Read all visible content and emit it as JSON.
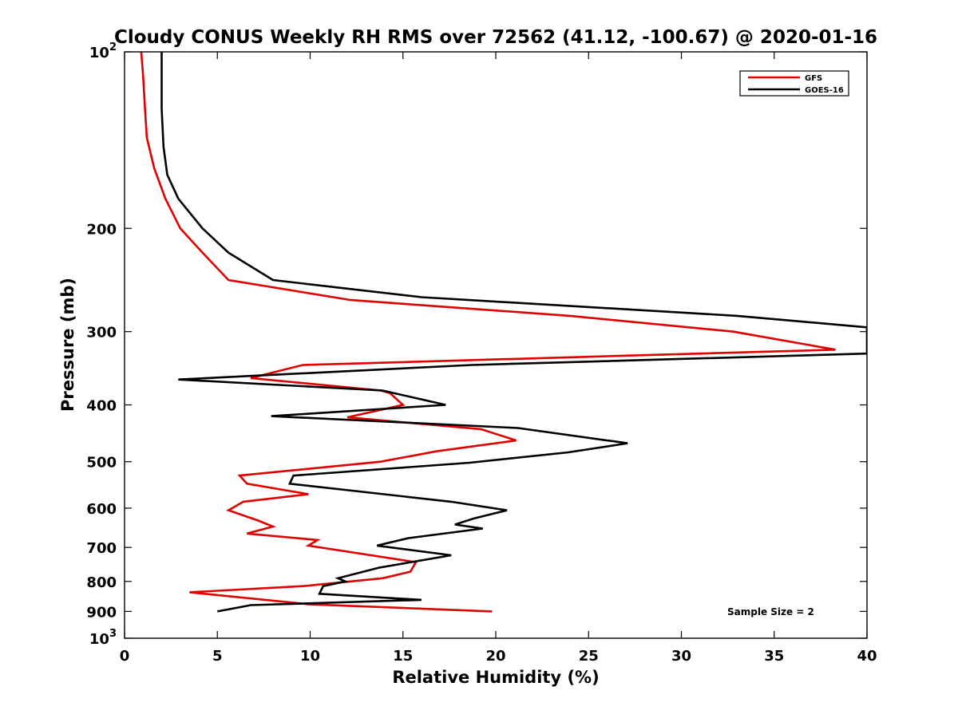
{
  "chart_data": {
    "type": "line",
    "title": "Cloudy CONUS Weekly RH RMS over 72562 (41.12, -100.67) @ 2020-01-16",
    "xlabel": "Relative Humidity (%)",
    "ylabel": "Pressure (mb)",
    "xlim": [
      0,
      40
    ],
    "ylim": [
      100,
      1000
    ],
    "y_scale": "log",
    "y_reversed": true,
    "x_ticks": [
      0,
      5,
      10,
      15,
      20,
      25,
      30,
      35,
      40
    ],
    "x_tick_labels": [
      "0",
      "5",
      "10",
      "15",
      "20",
      "25",
      "30",
      "35",
      "40"
    ],
    "y_ticks": [
      100,
      200,
      300,
      400,
      500,
      600,
      700,
      800,
      900,
      1000
    ],
    "y_tick_labels": [
      {
        "base": "10",
        "exp": "2"
      },
      {
        "base": "200"
      },
      {
        "base": "300"
      },
      {
        "base": "400"
      },
      {
        "base": "500"
      },
      {
        "base": "600"
      },
      {
        "base": "700"
      },
      {
        "base": "800"
      },
      {
        "base": "900"
      },
      {
        "base": "10",
        "exp": "3"
      }
    ],
    "legend_position": "top-right",
    "grid": false,
    "annotation": "Sample Size = 2",
    "series": [
      {
        "name": "GFS",
        "color": "#e00000",
        "points": [
          [
            0.9,
            100
          ],
          [
            1.0,
            110
          ],
          [
            1.1,
            125
          ],
          [
            1.2,
            140
          ],
          [
            1.6,
            158
          ],
          [
            2.2,
            178
          ],
          [
            3.0,
            200
          ],
          [
            4.2,
            220
          ],
          [
            5.6,
            245
          ],
          [
            12.2,
            265
          ],
          [
            24.0,
            282
          ],
          [
            32.8,
            300
          ],
          [
            38.3,
            322
          ],
          [
            9.6,
            342
          ],
          [
            6.8,
            360
          ],
          [
            13.8,
            378
          ],
          [
            14.3,
            382
          ],
          [
            15.0,
            400
          ],
          [
            12.0,
            420
          ],
          [
            19.2,
            440
          ],
          [
            21.1,
            460
          ],
          [
            16.8,
            480
          ],
          [
            13.8,
            500
          ],
          [
            6.2,
            528
          ],
          [
            6.6,
            545
          ],
          [
            9.9,
            568
          ],
          [
            6.4,
            585
          ],
          [
            5.6,
            605
          ],
          [
            7.2,
            630
          ],
          [
            8.0,
            645
          ],
          [
            6.6,
            663
          ],
          [
            10.4,
            680
          ],
          [
            9.9,
            695
          ],
          [
            15.7,
            742
          ],
          [
            15.4,
            770
          ],
          [
            13.9,
            790
          ],
          [
            9.6,
            815
          ],
          [
            3.5,
            835
          ],
          [
            9.9,
            875
          ],
          [
            19.8,
            900
          ]
        ]
      },
      {
        "name": "GOES-16",
        "color": "#000000",
        "points": [
          [
            2.0,
            100
          ],
          [
            2.0,
            125
          ],
          [
            2.1,
            145
          ],
          [
            2.3,
            162
          ],
          [
            2.9,
            178
          ],
          [
            4.2,
            200
          ],
          [
            5.6,
            220
          ],
          [
            8.0,
            245
          ],
          [
            16.0,
            262
          ],
          [
            33.0,
            282
          ],
          [
            40.0,
            295
          ],
          [
            40.0,
            327
          ],
          [
            18.7,
            342
          ],
          [
            2.9,
            362
          ],
          [
            13.9,
            378
          ],
          [
            17.3,
            400
          ],
          [
            7.9,
            418
          ],
          [
            21.2,
            438
          ],
          [
            27.1,
            465
          ],
          [
            23.9,
            482
          ],
          [
            18.6,
            502
          ],
          [
            9.1,
            528
          ],
          [
            8.9,
            545
          ],
          [
            17.6,
            585
          ],
          [
            20.6,
            605
          ],
          [
            18.8,
            625
          ],
          [
            17.8,
            640
          ],
          [
            19.3,
            650
          ],
          [
            15.3,
            675
          ],
          [
            13.6,
            695
          ],
          [
            17.6,
            722
          ],
          [
            13.7,
            758
          ],
          [
            11.5,
            790
          ],
          [
            11.9,
            800
          ],
          [
            10.7,
            815
          ],
          [
            10.5,
            840
          ],
          [
            16.0,
            860
          ],
          [
            6.8,
            878
          ],
          [
            5.0,
            900
          ]
        ]
      }
    ]
  }
}
